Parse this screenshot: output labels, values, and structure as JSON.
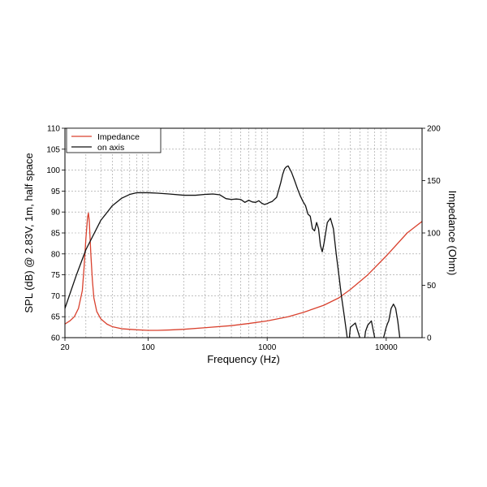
{
  "chart_data": {
    "type": "line",
    "xlabel": "Frequency (Hz)",
    "ylabel": "SPL (dB) @ 2.83V, 1m, half space",
    "y2label": "Impedance (Ohm)",
    "xscale": "log",
    "xlim": [
      20,
      20000
    ],
    "ylim": [
      60,
      110
    ],
    "y2lim": [
      0,
      200
    ],
    "grid": true,
    "legend_position": "top-left",
    "x_tick_labels": [
      "20",
      "100",
      "1000",
      "10000"
    ],
    "y_tick_labels": [
      "60",
      "65",
      "70",
      "75",
      "80",
      "85",
      "90",
      "95",
      "100",
      "105",
      "110"
    ],
    "y2_tick_labels": [
      "0",
      "50",
      "100",
      "150",
      "200"
    ],
    "series": [
      {
        "name": "Impedance",
        "axis": "right",
        "color": "#d9412e",
        "x": [
          20,
          22,
          24,
          26,
          28,
          29,
          30,
          31,
          31.5,
          32,
          33,
          34,
          35,
          37,
          40,
          45,
          50,
          60,
          80,
          100,
          120,
          150,
          200,
          300,
          500,
          700,
          1000,
          1500,
          2000,
          3000,
          4000,
          5000,
          7000,
          10000,
          15000,
          20000
        ],
        "y": [
          13,
          16,
          20,
          28,
          45,
          68,
          95,
          115,
          119,
          112,
          80,
          55,
          38,
          25,
          18,
          13,
          10.5,
          8.5,
          7.5,
          7,
          7,
          7.3,
          8,
          9.5,
          11.5,
          13.5,
          16,
          20,
          24,
          31,
          38,
          46,
          60,
          78,
          100,
          111
        ]
      },
      {
        "name": "on axis",
        "axis": "left",
        "color": "#111111",
        "x": [
          20,
          25,
          30,
          40,
          50,
          60,
          70,
          80,
          100,
          120,
          150,
          200,
          250,
          300,
          350,
          400,
          450,
          500,
          550,
          600,
          650,
          700,
          750,
          800,
          850,
          900,
          950,
          1000,
          1050,
          1100,
          1200,
          1300,
          1350,
          1400,
          1450,
          1500,
          1600,
          1700,
          1800,
          1900,
          2000,
          2100,
          2200,
          2300,
          2400,
          2500,
          2600,
          2700,
          2800,
          2900,
          3000,
          3200,
          3400,
          3600,
          3800,
          4000,
          4200,
          4400,
          4600,
          4700,
          4800,
          4900,
          5000,
          5500,
          6000,
          6300,
          6500,
          6700,
          7000,
          7500,
          8000,
          8500,
          9000,
          9500,
          10000,
          10300,
          10500,
          11000,
          11500,
          12000,
          12500,
          13000
        ],
        "y": [
          67,
          75,
          81,
          88,
          91.5,
          93.3,
          94.2,
          94.6,
          94.6,
          94.5,
          94.3,
          94,
          94,
          94.2,
          94.3,
          94.1,
          93.2,
          93,
          93.1,
          93,
          92.3,
          92.8,
          92.4,
          92.3,
          92.7,
          92.1,
          91.8,
          92,
          92.3,
          92.5,
          93.5,
          97,
          99,
          100.3,
          100.8,
          101,
          99.5,
          97.5,
          95.5,
          93.8,
          92.5,
          91.5,
          89.5,
          89,
          86,
          85.5,
          87.5,
          86,
          82,
          80.5,
          82.5,
          87.5,
          88.5,
          86,
          80,
          75,
          70,
          66,
          62,
          60,
          60,
          60,
          62.5,
          63.5,
          60,
          59,
          58.5,
          61.5,
          63,
          64,
          60,
          59,
          58.5,
          60,
          62.5,
          63.5,
          64,
          67,
          68,
          67,
          64,
          60
        ]
      }
    ]
  },
  "legend": {
    "items": [
      {
        "label": "Impedance",
        "color": "#d9412e"
      },
      {
        "label": "on axis",
        "color": "#111111"
      }
    ]
  }
}
